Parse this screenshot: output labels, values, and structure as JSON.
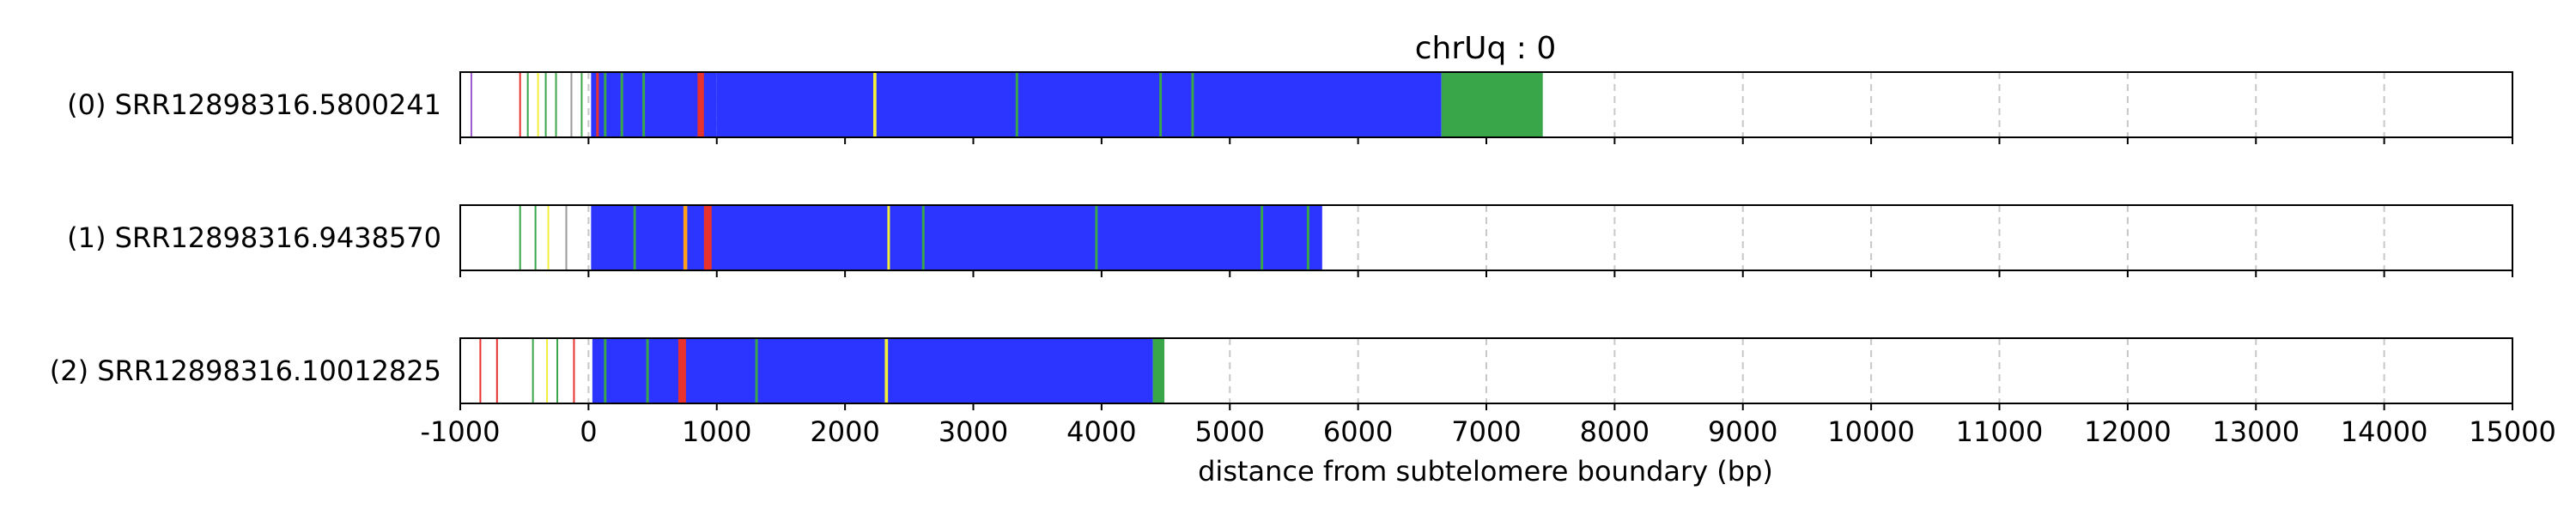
{
  "chart_data": {
    "type": "bar",
    "title": "chrUq : 0",
    "xlabel": "distance from subtelomere boundary (bp)",
    "xlim": [
      -1000,
      15000
    ],
    "x_ticks": [
      -1000,
      0,
      1000,
      2000,
      3000,
      4000,
      5000,
      6000,
      7000,
      8000,
      9000,
      10000,
      11000,
      12000,
      13000,
      14000,
      15000
    ],
    "x_tick_labels": [
      "-1000",
      "0",
      "1000",
      "2000",
      "3000",
      "4000",
      "5000",
      "6000",
      "7000",
      "8000",
      "9000",
      "10000",
      "11000",
      "12000",
      "13000",
      "14000",
      "15000"
    ],
    "grid": "vertical dashed",
    "colors": {
      "blue": "#2b35ff",
      "green": "#3aa64a",
      "red": "#e8322e",
      "orange": "#ff9f1c",
      "yellow": "#f2ef3a",
      "purple": "#9b59d0",
      "gray": "#9a9a9a"
    },
    "reads": [
      {
        "label": "(0) SRR12898316.5800241",
        "read_end": 7440,
        "segments": [
          {
            "start": -920,
            "end": -910,
            "color": "purple"
          },
          {
            "start": -540,
            "end": -530,
            "color": "red"
          },
          {
            "start": -480,
            "end": -470,
            "color": "green"
          },
          {
            "start": -400,
            "end": -390,
            "color": "yellow"
          },
          {
            "start": -340,
            "end": -330,
            "color": "green"
          },
          {
            "start": -260,
            "end": -250,
            "color": "green"
          },
          {
            "start": -140,
            "end": -130,
            "color": "gray"
          },
          {
            "start": -60,
            "end": -50,
            "color": "green"
          },
          {
            "start": 20,
            "end": 1000,
            "color": "blue"
          },
          {
            "start": 60,
            "end": 80,
            "color": "red"
          },
          {
            "start": 120,
            "end": 140,
            "color": "green"
          },
          {
            "start": 250,
            "end": 270,
            "color": "green"
          },
          {
            "start": 420,
            "end": 440,
            "color": "green"
          },
          {
            "start": 850,
            "end": 900,
            "color": "red"
          },
          {
            "start": 1000,
            "end": 6650,
            "color": "blue"
          },
          {
            "start": 2220,
            "end": 2245,
            "color": "yellow"
          },
          {
            "start": 3330,
            "end": 3350,
            "color": "green"
          },
          {
            "start": 4450,
            "end": 4470,
            "color": "green"
          },
          {
            "start": 4700,
            "end": 4720,
            "color": "green"
          },
          {
            "start": 6650,
            "end": 7440,
            "color": "green"
          }
        ]
      },
      {
        "label": "(1) SRR12898316.9438570",
        "read_end": 5720,
        "segments": [
          {
            "start": -540,
            "end": -530,
            "color": "green"
          },
          {
            "start": -420,
            "end": -410,
            "color": "green"
          },
          {
            "start": -320,
            "end": -310,
            "color": "yellow"
          },
          {
            "start": -180,
            "end": -170,
            "color": "gray"
          },
          {
            "start": 20,
            "end": 5720,
            "color": "blue"
          },
          {
            "start": 350,
            "end": 370,
            "color": "green"
          },
          {
            "start": 740,
            "end": 770,
            "color": "orange"
          },
          {
            "start": 900,
            "end": 960,
            "color": "red"
          },
          {
            "start": 2330,
            "end": 2350,
            "color": "yellow"
          },
          {
            "start": 2600,
            "end": 2620,
            "color": "green"
          },
          {
            "start": 3950,
            "end": 3970,
            "color": "green"
          },
          {
            "start": 5240,
            "end": 5260,
            "color": "green"
          },
          {
            "start": 5600,
            "end": 5620,
            "color": "green"
          }
        ]
      },
      {
        "label": "(2) SRR12898316.10012825",
        "read_end": 4490,
        "segments": [
          {
            "start": -850,
            "end": -840,
            "color": "red"
          },
          {
            "start": -720,
            "end": -710,
            "color": "red"
          },
          {
            "start": -440,
            "end": -430,
            "color": "green"
          },
          {
            "start": -330,
            "end": -320,
            "color": "yellow"
          },
          {
            "start": -250,
            "end": -240,
            "color": "green"
          },
          {
            "start": -120,
            "end": -110,
            "color": "red"
          },
          {
            "start": 30,
            "end": 4400,
            "color": "blue"
          },
          {
            "start": 120,
            "end": 140,
            "color": "green"
          },
          {
            "start": 450,
            "end": 470,
            "color": "green"
          },
          {
            "start": 700,
            "end": 760,
            "color": "red"
          },
          {
            "start": 1300,
            "end": 1320,
            "color": "green"
          },
          {
            "start": 2310,
            "end": 2335,
            "color": "yellow"
          },
          {
            "start": 4400,
            "end": 4490,
            "color": "green"
          }
        ]
      }
    ]
  }
}
